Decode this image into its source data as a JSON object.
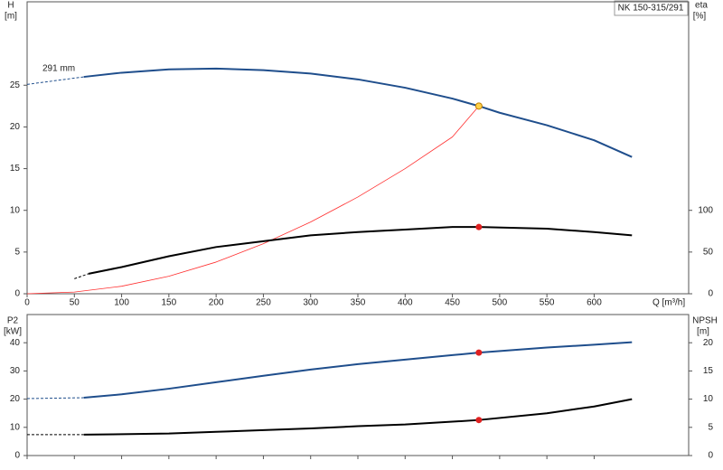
{
  "chart_data": [
    {
      "type": "line",
      "title": "NK 150-315/291",
      "ylabel": "H",
      "yunit": "[m]",
      "y2label": "eta",
      "y2unit": "[%]",
      "xlabel": "Q [m³/h]",
      "annotations": [
        "291 mm"
      ],
      "xlim": [
        0,
        700
      ],
      "xticks": [
        0,
        50,
        100,
        150,
        200,
        250,
        300,
        350,
        400,
        450,
        500,
        550,
        600
      ],
      "xtick_labels": true,
      "ylim": [
        0,
        35
      ],
      "yticks": [
        0,
        5,
        10,
        15,
        20,
        25
      ],
      "y2lim": [
        0,
        350
      ],
      "y2ticks": [
        0,
        50,
        100
      ],
      "series": [
        {
          "x": [
            0,
            60
          ],
          "values": [
            25.1,
            26.0
          ],
          "color": "#1f4e8c",
          "dashed": true,
          "width": 1
        },
        {
          "x": [
            60,
            100,
            150,
            200,
            250,
            300,
            350,
            400,
            450,
            478,
            500,
            550,
            600,
            640
          ],
          "values": [
            26.0,
            26.5,
            26.9,
            27.0,
            26.8,
            26.4,
            25.7,
            24.7,
            23.4,
            22.5,
            21.7,
            20.2,
            18.4,
            16.4
          ],
          "color": "#1f4e8c",
          "width": 2
        },
        {
          "x": [
            0,
            50,
            100,
            150,
            200,
            250,
            300,
            350,
            400,
            450,
            478
          ],
          "values": [
            0,
            0.2,
            0.9,
            2.1,
            3.8,
            6.0,
            8.6,
            11.6,
            15.0,
            18.8,
            22.5
          ],
          "color": "#ff3030",
          "width": 0.8
        },
        {
          "x": [
            50,
            65
          ],
          "values": [
            18,
            24
          ],
          "color": "#000000",
          "dashed": true,
          "width": 1,
          "axis": "y2"
        },
        {
          "x": [
            65,
            100,
            150,
            200,
            250,
            300,
            350,
            400,
            450,
            478,
            550,
            600,
            640
          ],
          "values": [
            24,
            32,
            45,
            56,
            63,
            70,
            74,
            77,
            80,
            80,
            78,
            74,
            70
          ],
          "color": "#000000",
          "width": 2,
          "axis": "y2"
        }
      ],
      "markers": [
        {
          "x": 478,
          "y": 22.5,
          "color": "#ffd24a"
        },
        {
          "x": 478,
          "y": 80,
          "color": "#e02020",
          "axis": "y2"
        }
      ]
    },
    {
      "type": "line",
      "ylabel": "P2",
      "yunit": "[kW]",
      "y2label": "NPSH",
      "y2unit": "[m]",
      "xlim": [
        0,
        700
      ],
      "xticks": [
        0,
        50,
        100,
        150,
        200,
        250,
        300,
        350,
        400,
        450,
        500,
        550,
        600
      ],
      "xtick_labels": false,
      "ylim": [
        0,
        50
      ],
      "yticks": [
        0,
        10,
        20,
        30,
        40
      ],
      "y2lim": [
        0,
        25
      ],
      "y2ticks": [
        0,
        5,
        10,
        15,
        20
      ],
      "series": [
        {
          "x": [
            0,
            60
          ],
          "values": [
            20.2,
            20.5
          ],
          "color": "#1f4e8c",
          "dashed": true,
          "width": 1
        },
        {
          "x": [
            60,
            100,
            150,
            200,
            250,
            300,
            350,
            400,
            450,
            478,
            550,
            600,
            640
          ],
          "values": [
            20.5,
            21.7,
            23.7,
            26.0,
            28.3,
            30.5,
            32.4,
            34.0,
            35.6,
            36.5,
            38.3,
            39.3,
            40.2
          ],
          "color": "#1f4e8c",
          "width": 2
        },
        {
          "x": [
            0,
            60
          ],
          "values": [
            3.7,
            3.7
          ],
          "color": "#000000",
          "dashed": true,
          "width": 1,
          "axis": "y2"
        },
        {
          "x": [
            60,
            150,
            200,
            250,
            300,
            350,
            400,
            450,
            478,
            550,
            600,
            640
          ],
          "values": [
            3.7,
            3.9,
            4.2,
            4.5,
            4.8,
            5.2,
            5.5,
            6.0,
            6.3,
            7.5,
            8.7,
            10.0
          ],
          "color": "#000000",
          "width": 2,
          "axis": "y2"
        }
      ],
      "markers": [
        {
          "x": 478,
          "y": 36.5,
          "color": "#e02020"
        },
        {
          "x": 478,
          "y": 6.3,
          "color": "#e02020",
          "axis": "y2"
        }
      ]
    }
  ]
}
